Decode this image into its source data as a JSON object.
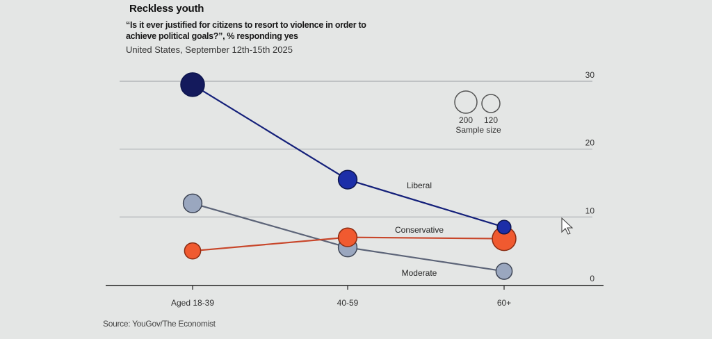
{
  "header": {
    "title": "Reckless youth",
    "subtitle": "“Is it ever justified for citizens to resort to violence in order to achieve political goals?”, % responding yes",
    "note": "United States, September 12th-15th 2025"
  },
  "legend": {
    "size_values": [
      "200",
      "120"
    ],
    "size_label": "Sample size"
  },
  "source": "Source: YouGov/The Economist",
  "chart_data": {
    "type": "line",
    "title": "Reckless youth",
    "subtitle": "“Is it ever justified for citizens to resort to violence in order to achieve political goals?”, % responding yes",
    "xlabel": "",
    "ylabel": "% responding yes",
    "categories": [
      "Aged 18-39",
      "40-59",
      "60+"
    ],
    "ylim": [
      0,
      30
    ],
    "yticks": [
      "0",
      "10",
      "20",
      "30"
    ],
    "grid": true,
    "legend": "top-right (sample size)",
    "series": [
      {
        "name": "Liberal",
        "color": "#1a2a8c",
        "values": [
          29.5,
          15.5,
          8.5
        ],
        "sample_size": [
          200,
          160,
          120
        ]
      },
      {
        "name": "Conservative",
        "color": "#f05a30",
        "values": [
          5,
          7,
          6.8
        ],
        "sample_size": [
          140,
          160,
          200
        ]
      },
      {
        "name": "Moderate",
        "color": "#9aa7bf",
        "values": [
          12,
          5.5,
          2
        ],
        "sample_size": [
          160,
          160,
          140
        ]
      }
    ]
  }
}
